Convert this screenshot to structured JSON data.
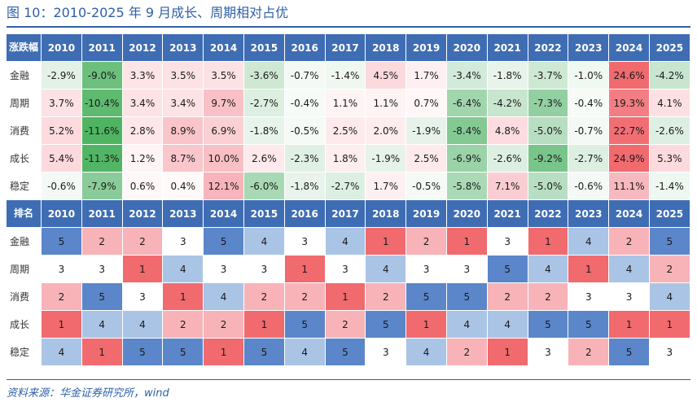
{
  "title": "图 10：2010-2025 年 9 月成长、周期相对占优",
  "source": "资料来源：华金证券研究所，wind",
  "returns_table": {
    "header_label": "涨跌幅",
    "years": [
      "2010",
      "2011",
      "2012",
      "2013",
      "2014",
      "2015",
      "2016",
      "2017",
      "2018",
      "2019",
      "2020",
      "2021",
      "2022",
      "2023",
      "2024",
      "2025"
    ],
    "rows": [
      {
        "label": "金融",
        "values": [
          "-2.9%",
          "-9.0%",
          "3.3%",
          "3.5%",
          "3.5%",
          "-3.6%",
          "-0.7%",
          "-1.4%",
          "4.5%",
          "1.7%",
          "-3.4%",
          "-1.8%",
          "-3.7%",
          "-1.0%",
          "24.6%",
          "-4.2%"
        ],
        "colors": [
          "#e3f1e6",
          "#6cc07c",
          "#fde4e7",
          "#fde2e5",
          "#fde2e5",
          "#cfe8d4",
          "#f4f9f5",
          "#eef7f0",
          "#fcd9dd",
          "#fef0f2",
          "#d2eada",
          "#e8f4eb",
          "#cde8d3",
          "#f0f8f2",
          "#f06a6e",
          "#c8e5cf"
        ]
      },
      {
        "label": "周期",
        "values": [
          "3.7%",
          "-10.4%",
          "3.4%",
          "3.4%",
          "9.7%",
          "-2.7%",
          "-0.4%",
          "1.1%",
          "1.1%",
          "0.7%",
          "-6.4%",
          "-4.2%",
          "-7.3%",
          "-0.4%",
          "19.3%",
          "4.1%"
        ],
        "colors": [
          "#fde2e5",
          "#5dba6f",
          "#fde3e6",
          "#fde3e6",
          "#f9c1c6",
          "#dcefe1",
          "#f6fbf7",
          "#fef3f5",
          "#fef3f5",
          "#fff7f8",
          "#a1d6ad",
          "#c8e5cf",
          "#92cfa1",
          "#f6fbf7",
          "#f27e83",
          "#fde0e3"
        ]
      },
      {
        "label": "消费",
        "values": [
          "5.2%",
          "-11.6%",
          "2.8%",
          "8.9%",
          "6.9%",
          "-1.8%",
          "-0.5%",
          "2.5%",
          "2.0%",
          "-1.9%",
          "-8.4%",
          "4.8%",
          "-5.0%",
          "-0.7%",
          "22.7%",
          "-2.6%"
        ],
        "colors": [
          "#fcdade",
          "#4fb462",
          "#fee7ea",
          "#f9c5ca",
          "#fad0d4",
          "#e8f4eb",
          "#f5faf6",
          "#feeaec",
          "#feedef",
          "#e7f3ea",
          "#84c994",
          "#fcdce0",
          "#b8dec1",
          "#f4f9f5",
          "#f16e73",
          "#ddefe2"
        ]
      },
      {
        "label": "成长",
        "values": [
          "5.4%",
          "-11.3%",
          "1.2%",
          "8.7%",
          "10.0%",
          "2.6%",
          "-2.3%",
          "1.8%",
          "-1.9%",
          "2.5%",
          "-6.9%",
          "-2.6%",
          "-9.2%",
          "-2.7%",
          "24.9%",
          "5.3%"
        ],
        "colors": [
          "#fcd9dd",
          "#52b565",
          "#fef3f5",
          "#f9c6cb",
          "#f8bfc4",
          "#fee9ec",
          "#e0f0e4",
          "#feeef0",
          "#e7f3ea",
          "#feeaec",
          "#9ad3a7",
          "#ddefe2",
          "#79c48a",
          "#dcefe1",
          "#f06a6e",
          "#fcdade"
        ]
      },
      {
        "label": "稳定",
        "values": [
          "-0.6%",
          "-7.9%",
          "0.6%",
          "0.4%",
          "12.1%",
          "-6.0%",
          "-1.8%",
          "-2.7%",
          "1.7%",
          "-0.5%",
          "-5.8%",
          "7.1%",
          "-5.0%",
          "-0.6%",
          "11.1%",
          "-1.4%"
        ],
        "colors": [
          "#f4f9f5",
          "#8acc99",
          "#fff7f8",
          "#fff9fa",
          "#f8b4ba",
          "#a8d9b4",
          "#e8f4eb",
          "#dcefe1",
          "#fef0f2",
          "#f5faf6",
          "#aadab5",
          "#facdd2",
          "#b8dec1",
          "#f4f9f5",
          "#f8b9be",
          "#eef7f0"
        ]
      }
    ]
  },
  "rank_table": {
    "header_label": "排名",
    "years": [
      "2010",
      "2011",
      "2012",
      "2013",
      "2014",
      "2015",
      "2016",
      "2017",
      "2018",
      "2019",
      "2020",
      "2021",
      "2022",
      "2023",
      "2024",
      "2025"
    ],
    "rows": [
      {
        "label": "金融",
        "values": [
          "5",
          "2",
          "2",
          "3",
          "5",
          "4",
          "3",
          "4",
          "1",
          "2",
          "1",
          "3",
          "1",
          "4",
          "2",
          "5"
        ]
      },
      {
        "label": "周期",
        "values": [
          "3",
          "3",
          "1",
          "4",
          "3",
          "3",
          "1",
          "3",
          "4",
          "3",
          "3",
          "5",
          "4",
          "1",
          "4",
          "2"
        ]
      },
      {
        "label": "消费",
        "values": [
          "2",
          "5",
          "3",
          "1",
          "4",
          "2",
          "2",
          "1",
          "2",
          "5",
          "5",
          "2",
          "2",
          "3",
          "3",
          "4"
        ]
      },
      {
        "label": "成长",
        "values": [
          "1",
          "4",
          "4",
          "2",
          "2",
          "1",
          "5",
          "2",
          "5",
          "1",
          "4",
          "4",
          "5",
          "5",
          "1",
          "1"
        ]
      },
      {
        "label": "稳定",
        "values": [
          "4",
          "1",
          "5",
          "5",
          "1",
          "5",
          "4",
          "5",
          "3",
          "4",
          "2",
          "1",
          "3",
          "2",
          "5",
          "3"
        ]
      }
    ],
    "rank_colors": {
      "1": "#f06a6e",
      "2": "#f8b3b9",
      "3": "#ffffff",
      "4": "#aac4e6",
      "5": "#5b86c9"
    }
  }
}
